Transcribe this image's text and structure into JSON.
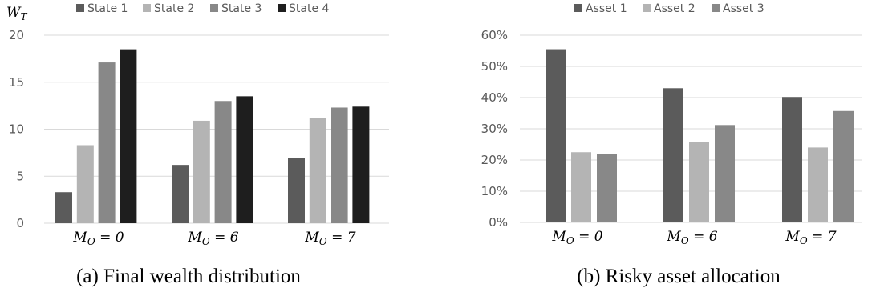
{
  "chart_data": [
    {
      "type": "bar",
      "ylabel": "W_T",
      "categories": [
        "M_O = 0",
        "M_O = 6",
        "M_O = 7"
      ],
      "series": [
        {
          "name": "State 1",
          "color": "#5b5b5b",
          "values": [
            3.3,
            6.2,
            6.9
          ]
        },
        {
          "name": "State 2",
          "color": "#b4b4b4",
          "values": [
            8.3,
            10.9,
            11.2
          ]
        },
        {
          "name": "State 3",
          "color": "#888888",
          "values": [
            17.1,
            13.0,
            12.3
          ]
        },
        {
          "name": "State 4",
          "color": "#1e1e1e",
          "values": [
            18.5,
            13.5,
            12.4
          ]
        }
      ],
      "yticks": [
        "0",
        "5",
        "10",
        "15",
        "20"
      ],
      "ylim": [
        0,
        20
      ],
      "grid": true,
      "legend": "top",
      "caption": "(a) Final wealth distribution"
    },
    {
      "type": "bar",
      "categories": [
        "M_O = 0",
        "M_O = 6",
        "M_O = 7"
      ],
      "series": [
        {
          "name": "Asset 1",
          "color": "#5b5b5b",
          "values": [
            55.5,
            43.0,
            40.2
          ]
        },
        {
          "name": "Asset 2",
          "color": "#b4b4b4",
          "values": [
            22.5,
            25.7,
            24.0
          ]
        },
        {
          "name": "Asset 3",
          "color": "#888888",
          "values": [
            22.0,
            31.2,
            35.7
          ]
        }
      ],
      "yticks": [
        "0%",
        "10%",
        "20%",
        "30%",
        "40%",
        "50%",
        "60%"
      ],
      "ylim": [
        0,
        60
      ],
      "grid": true,
      "legend": "top",
      "caption": "(b) Risky asset allocation"
    }
  ]
}
